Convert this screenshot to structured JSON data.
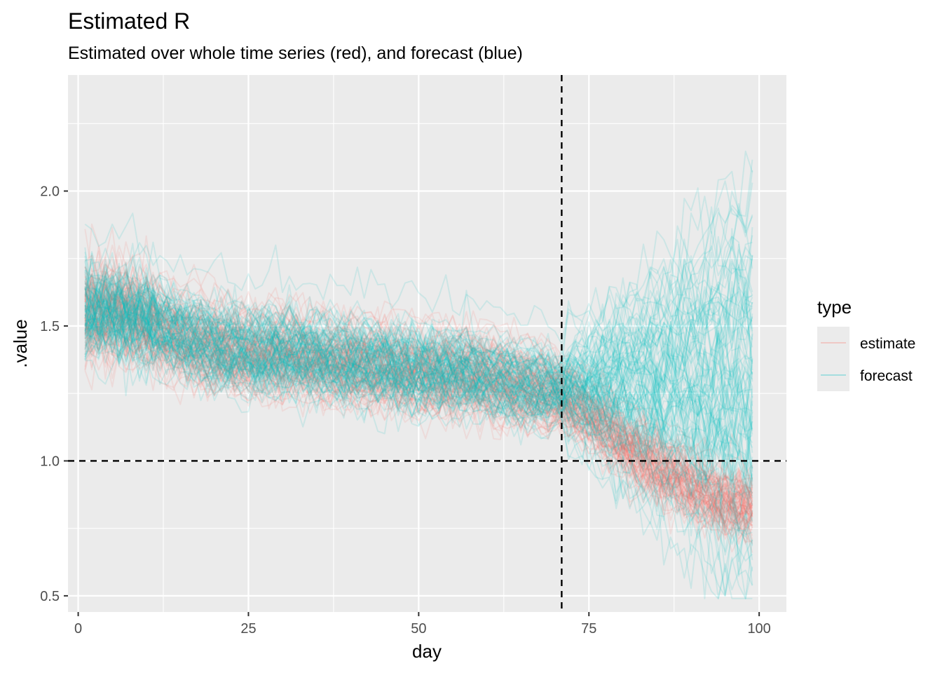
{
  "chart_data": {
    "type": "line",
    "title": "Estimated R",
    "subtitle": "Estimated over whole time series (red), and forecast (blue)",
    "xlabel": "day",
    "ylabel": ".value",
    "xlim": [
      -1.5,
      104
    ],
    "ylim": [
      0.44,
      2.43
    ],
    "x_ticks": [
      0,
      25,
      50,
      75,
      100
    ],
    "y_ticks": [
      0.5,
      1.0,
      1.5,
      2.0
    ],
    "x_tick_labels": [
      "0",
      "25",
      "50",
      "75",
      "100"
    ],
    "y_tick_labels": [
      "0.5",
      "1.0",
      "1.5",
      "2.0"
    ],
    "reference_lines": {
      "vertical_x": 71,
      "horizontal_y": 1.0
    },
    "grid": true,
    "legend": {
      "title": "type",
      "position": "right",
      "entries": [
        {
          "label": "estimate",
          "color": "#F8766D"
        },
        {
          "label": "forecast",
          "color": "#00BFC4"
        }
      ]
    },
    "series_mean": {
      "x": [
        1,
        5,
        10,
        15,
        20,
        25,
        30,
        35,
        40,
        45,
        50,
        55,
        60,
        65,
        70,
        75,
        80,
        85,
        90,
        95,
        99
      ],
      "estimate": [
        1.56,
        1.57,
        1.53,
        1.47,
        1.43,
        1.41,
        1.41,
        1.39,
        1.37,
        1.36,
        1.34,
        1.33,
        1.32,
        1.29,
        1.26,
        1.18,
        1.08,
        0.99,
        0.92,
        0.86,
        0.84
      ],
      "forecast": [
        1.55,
        1.56,
        1.53,
        1.47,
        1.43,
        1.41,
        1.41,
        1.39,
        1.37,
        1.36,
        1.34,
        1.34,
        1.32,
        1.29,
        1.27,
        1.27,
        1.27,
        1.27,
        1.27,
        1.27,
        1.27
      ]
    },
    "n_draws": {
      "estimate": 100,
      "forecast": 100
    }
  }
}
